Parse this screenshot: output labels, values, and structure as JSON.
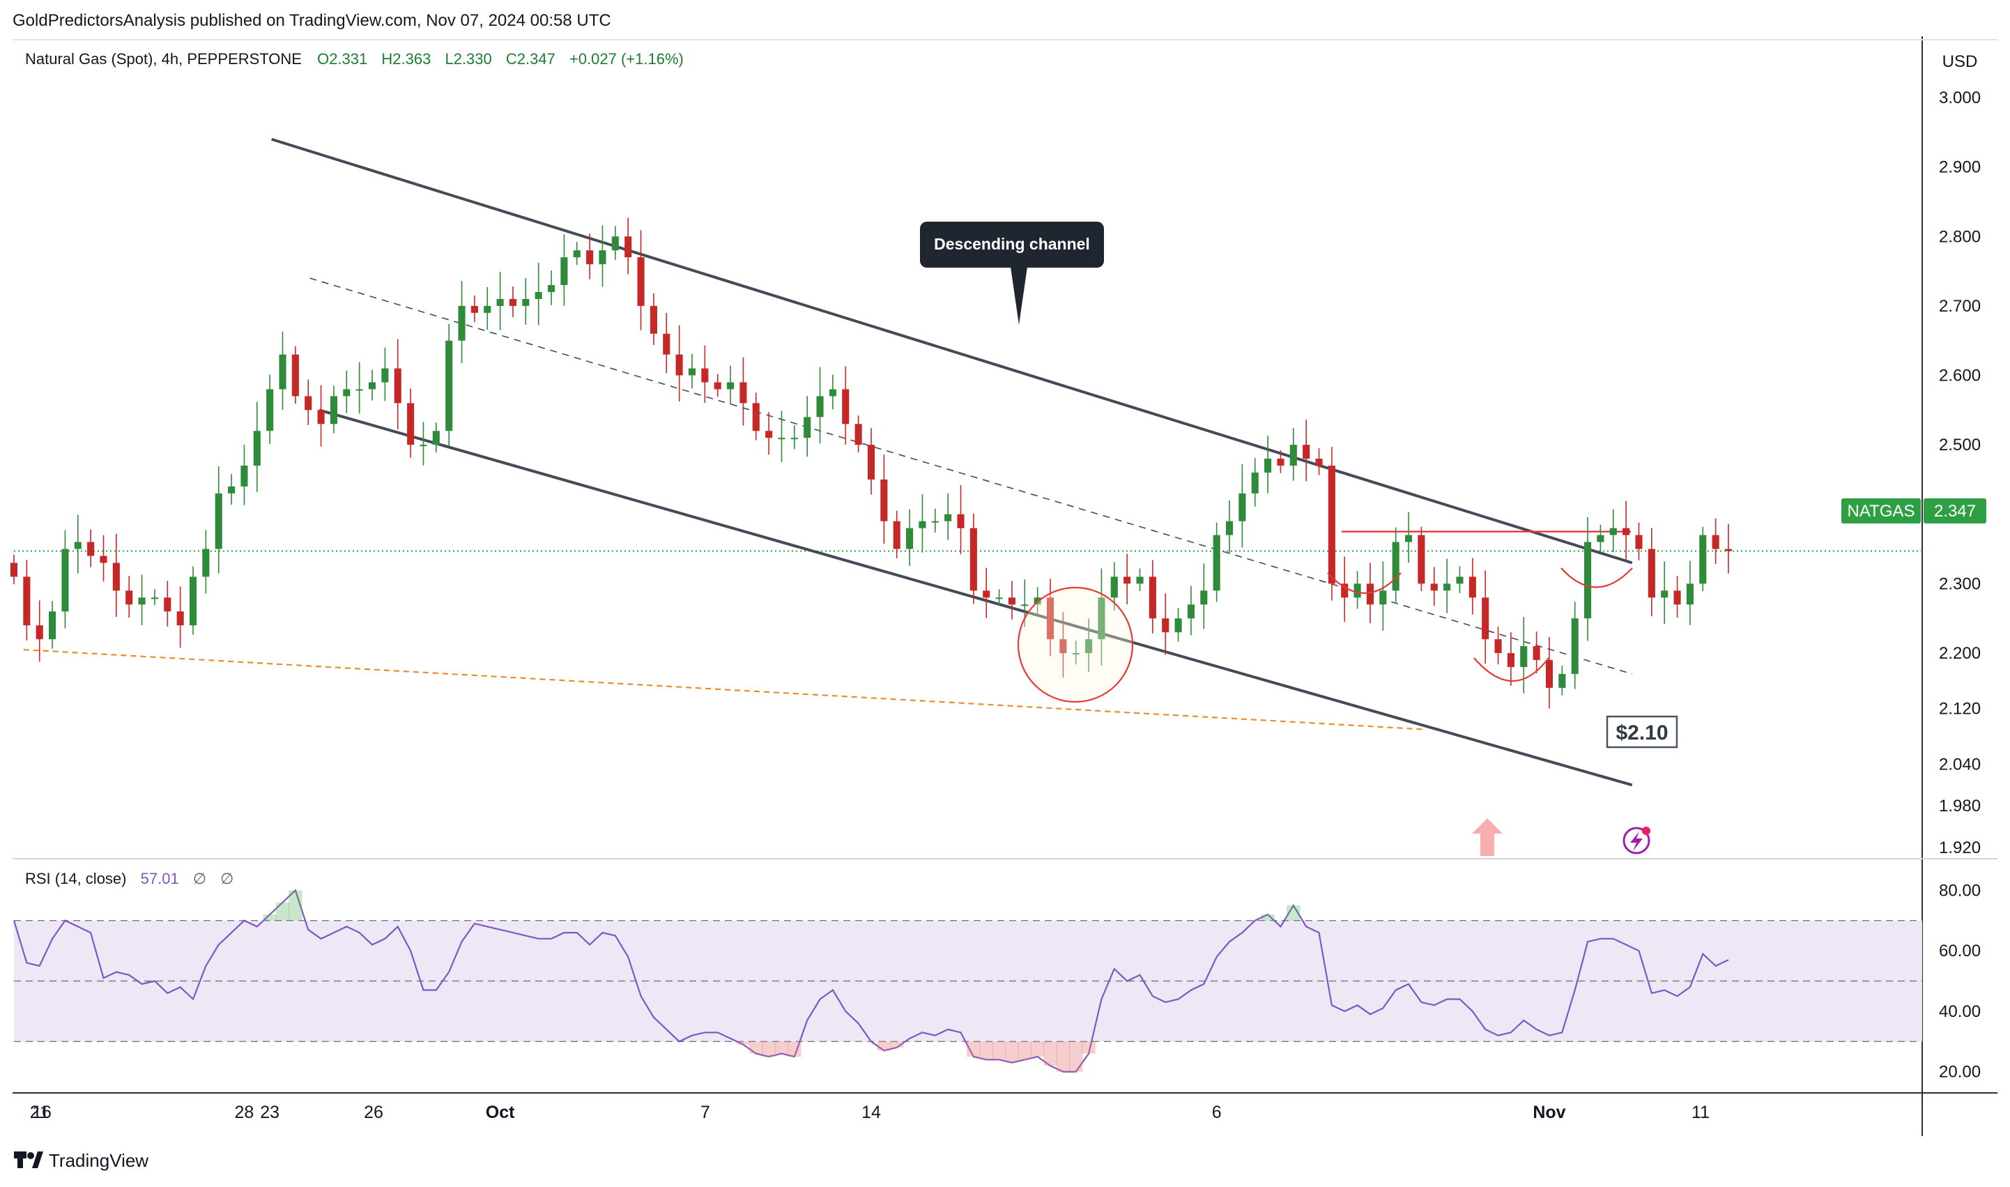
{
  "header": {
    "publisher_line": "GoldPredictorsAnalysis published on TradingView.com, Nov 07, 2024 00:58 UTC",
    "symbol_line": "Natural Gas (Spot), 4h, PEPPERSTONE",
    "ohlc": {
      "o": "O2.331",
      "h": "H2.363",
      "l": "L2.330",
      "c": "C2.347",
      "chg": "+0.027 (+1.16%)"
    }
  },
  "currency": "USD",
  "price_tag": {
    "symbol": "NATGAS",
    "value": "2.347"
  },
  "footer": {
    "brand": "TradingView"
  },
  "annotations": {
    "callout": "Descending channel",
    "level_label": "$2.10"
  },
  "rsi": {
    "label": "RSI (14, close)",
    "value": "57.01",
    "flags": [
      "∅",
      "∅"
    ]
  },
  "colors": {
    "up": "#2e8b3a",
    "down": "#c62828",
    "channel": "#454a57",
    "resistance": "#e53935",
    "support_dashed": "#ef8a2a",
    "price_line": "#27a844",
    "rsi_line": "#7e57c2",
    "rsi_band": "#ede7f6",
    "callout_bg": "#1f2630"
  },
  "chart_data": [
    {
      "type": "candlestick",
      "series_name": "Natural Gas (Spot), 4h, PEPPERSTONE",
      "x_ticks": [
        "16",
        "23",
        "26",
        "Oct",
        "7",
        "14",
        "21",
        "28",
        "Nov",
        "6",
        "11"
      ],
      "y_ticks": [
        "3.000",
        "2.900",
        "2.800",
        "2.700",
        "2.600",
        "2.500",
        "2.400",
        "2.300",
        "2.200",
        "2.120",
        "2.040",
        "1.980",
        "1.920"
      ],
      "ylim": [
        1.92,
        3.0
      ],
      "last_price": 2.347,
      "closes": [
        2.31,
        2.24,
        2.22,
        2.26,
        2.35,
        2.36,
        2.34,
        2.33,
        2.29,
        2.27,
        2.28,
        2.28,
        2.26,
        2.24,
        2.31,
        2.35,
        2.43,
        2.44,
        2.47,
        2.52,
        2.58,
        2.63,
        2.57,
        2.55,
        2.53,
        2.57,
        2.58,
        2.58,
        2.59,
        2.61,
        2.56,
        2.5,
        2.5,
        2.52,
        2.65,
        2.7,
        2.69,
        2.7,
        2.71,
        2.7,
        2.71,
        2.72,
        2.73,
        2.77,
        2.78,
        2.76,
        2.78,
        2.8,
        2.77,
        2.7,
        2.66,
        2.63,
        2.6,
        2.61,
        2.59,
        2.58,
        2.59,
        2.56,
        2.52,
        2.51,
        2.51,
        2.51,
        2.54,
        2.57,
        2.58,
        2.53,
        2.5,
        2.45,
        2.39,
        2.35,
        2.38,
        2.39,
        2.39,
        2.4,
        2.38,
        2.29,
        2.28,
        2.28,
        2.27,
        2.27,
        2.28,
        2.22,
        2.2,
        2.2,
        2.22,
        2.28,
        2.31,
        2.3,
        2.31,
        2.25,
        2.23,
        2.25,
        2.27,
        2.29,
        2.37,
        2.39,
        2.43,
        2.46,
        2.48,
        2.47,
        2.5,
        2.48,
        2.47,
        2.3,
        2.28,
        2.3,
        2.27,
        2.29,
        2.36,
        2.37,
        2.3,
        2.29,
        2.3,
        2.31,
        2.28,
        2.22,
        2.2,
        2.18,
        2.21,
        2.19,
        2.15,
        2.17,
        2.25,
        2.36,
        2.37,
        2.38,
        2.37,
        2.35,
        2.28,
        2.29,
        2.27,
        2.3,
        2.37,
        2.35,
        2.347
      ],
      "events": [
        {
          "label": "23",
          "close": 2.58
        },
        {
          "label": "Oct",
          "close": 2.71
        },
        {
          "label": "21",
          "close": 2.22
        },
        {
          "label": "28",
          "close": 2.47
        },
        {
          "label": "Nov",
          "close": 2.15
        },
        {
          "label": "6",
          "close": 2.37
        }
      ],
      "overlays": {
        "channel_upper": [
          [
            2.94,
            0.135
          ],
          [
            2.33,
            0.848
          ]
        ],
        "channel_lower": [
          [
            2.55,
            0.16
          ],
          [
            2.01,
            0.848
          ]
        ],
        "channel_mid": [
          [
            2.74,
            0.155
          ],
          [
            2.17,
            0.848
          ]
        ],
        "resistance": {
          "value": 2.375
        },
        "support_trend": [
          [
            2.205,
            0.005
          ],
          [
            2.09,
            0.74
          ]
        ]
      }
    },
    {
      "type": "line",
      "series_name": "RSI (14, close)",
      "y_ticks": [
        "80.00",
        "60.00",
        "40.00",
        "20.00"
      ],
      "ylim": [
        16,
        84
      ],
      "band": [
        30,
        70
      ],
      "midline": 50,
      "values": [
        70,
        56,
        55,
        64,
        70,
        68,
        66,
        51,
        53,
        52,
        49,
        50,
        46,
        48,
        44,
        55,
        62,
        66,
        70,
        68,
        72,
        76,
        80,
        67,
        64,
        66,
        68,
        66,
        62,
        64,
        68,
        60,
        47,
        47,
        53,
        63,
        69,
        68,
        67,
        66,
        65,
        64,
        64,
        66,
        66,
        62,
        66,
        65,
        58,
        45,
        38,
        34,
        30,
        32,
        33,
        33,
        31,
        29,
        26,
        25,
        26,
        25,
        37,
        44,
        47,
        40,
        36,
        30,
        27,
        28,
        31,
        33,
        32,
        34,
        33,
        25,
        24,
        24,
        23,
        24,
        25,
        22,
        20,
        20,
        26,
        44,
        54,
        50,
        52,
        45,
        43,
        44,
        47,
        49,
        58,
        63,
        66,
        70,
        72,
        68,
        75,
        68,
        66,
        42,
        40,
        42,
        39,
        41,
        47,
        49,
        43,
        42,
        44,
        44,
        40,
        34,
        32,
        33,
        37,
        34,
        32,
        33,
        47,
        63,
        64,
        64,
        62,
        60,
        46,
        47,
        45,
        48,
        59,
        55,
        57.01
      ]
    }
  ]
}
